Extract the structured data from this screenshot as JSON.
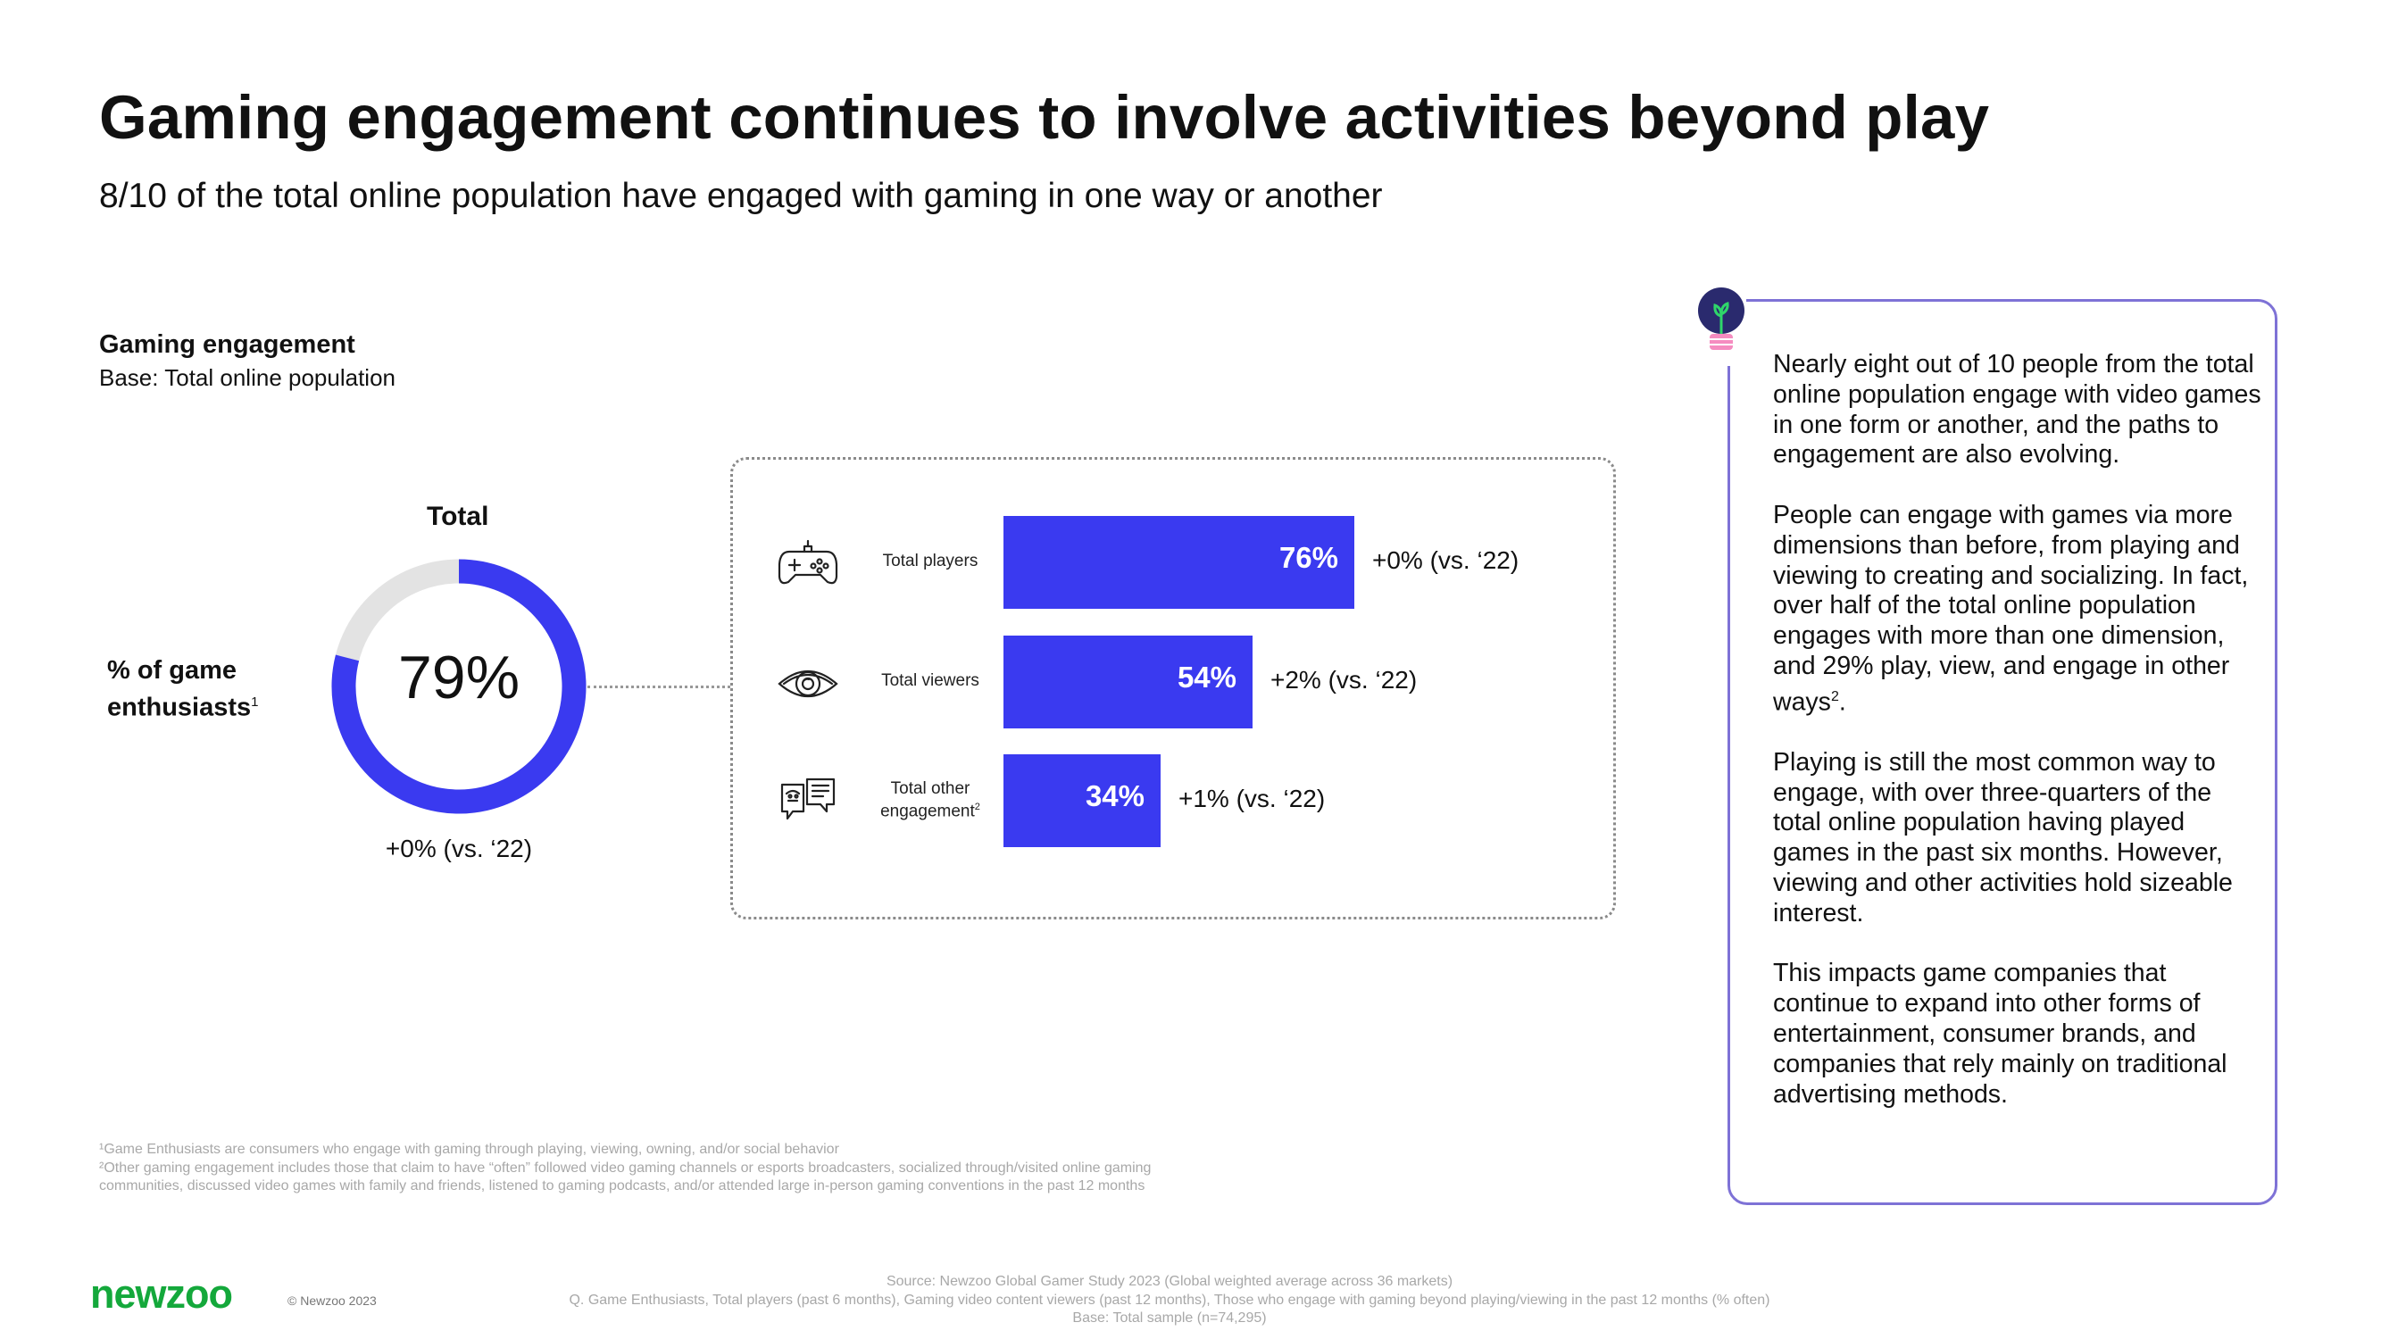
{
  "title": "Gaming engagement continues to involve activities beyond play",
  "subtitle": "8/10 of the total online population have engaged with gaming in one way or another",
  "section": {
    "title": "Gaming engagement",
    "base": "Base: Total online population"
  },
  "donut": {
    "label": "Total",
    "value_text": "79%",
    "change": "+0% (vs. ‘22)",
    "row_label_line1": "% of game",
    "row_label_line2": "enthusiasts",
    "row_label_sup": "1"
  },
  "colors": {
    "accent": "#3a3af0",
    "track": "#e3e3e3",
    "insight_border": "#7e72d6",
    "logo": "#14a83b"
  },
  "chart_data": [
    {
      "type": "pie",
      "categories": [
        "% of game enthusiasts"
      ],
      "values": [
        79
      ],
      "title": "Total",
      "ylim": [
        0,
        100
      ]
    },
    {
      "type": "bar",
      "orientation": "horizontal",
      "categories": [
        "Total players",
        "Total viewers",
        "Total other engagement"
      ],
      "values": [
        76,
        54,
        34
      ],
      "value_labels": [
        "76%",
        "54%",
        "34%"
      ],
      "changes": [
        "+0% (vs. ‘22)",
        "+2% (vs. ‘22)",
        "+1% (vs. ‘22)"
      ],
      "icons": [
        "gamepad-icon",
        "eye-icon",
        "chat-icon"
      ],
      "label_sups": [
        "",
        "",
        "2"
      ],
      "xlim": [
        0,
        100
      ]
    }
  ],
  "insight": {
    "icon": "lightbulb-icon",
    "p1": "Nearly eight out of 10 people from the total online population engage with video games in one form or another, and the paths to engagement are also evolving.",
    "p2": "People can engage with games via more dimensions than before, from playing and viewing to creating and socializing. In fact, over half of the total online population engages with more than one dimension, and 29% play, view, and engage in other ways",
    "p2_sup": "2",
    "p2_end": ".",
    "p3": "Playing is still the most common way to engage, with over three-quarters of the total online population having played games in the past six months. However, viewing and other activities hold sizeable interest.",
    "p4": "This impacts game companies that continue to expand into other forms of entertainment, consumer brands, and companies that rely mainly on traditional advertising methods."
  },
  "footnotes": {
    "f1": "¹Game Enthusiasts are consumers who engage with gaming through playing, viewing, owning, and/or social behavior",
    "f2a": "²Other gaming engagement includes those that claim to have “often” followed video gaming channels or esports broadcasters, socialized through/visited online gaming",
    "f2b": "communities, discussed video games with family and friends, listened to gaming podcasts, and/or attended large in-person gaming conventions in the past 12 months"
  },
  "footer": {
    "logo": "newzoo",
    "copyright": "© Newzoo 2023",
    "source_line1": "Source: Newzoo Global Gamer Study 2023 (Global weighted average across 36 markets)",
    "source_line2": "Q. Game Enthusiasts, Total players (past 6 months), Gaming video content viewers (past 12 months), Those who engage with gaming beyond playing/viewing in the past 12 months (% often)",
    "source_line3": "Base: Total sample (n=74,295)"
  }
}
